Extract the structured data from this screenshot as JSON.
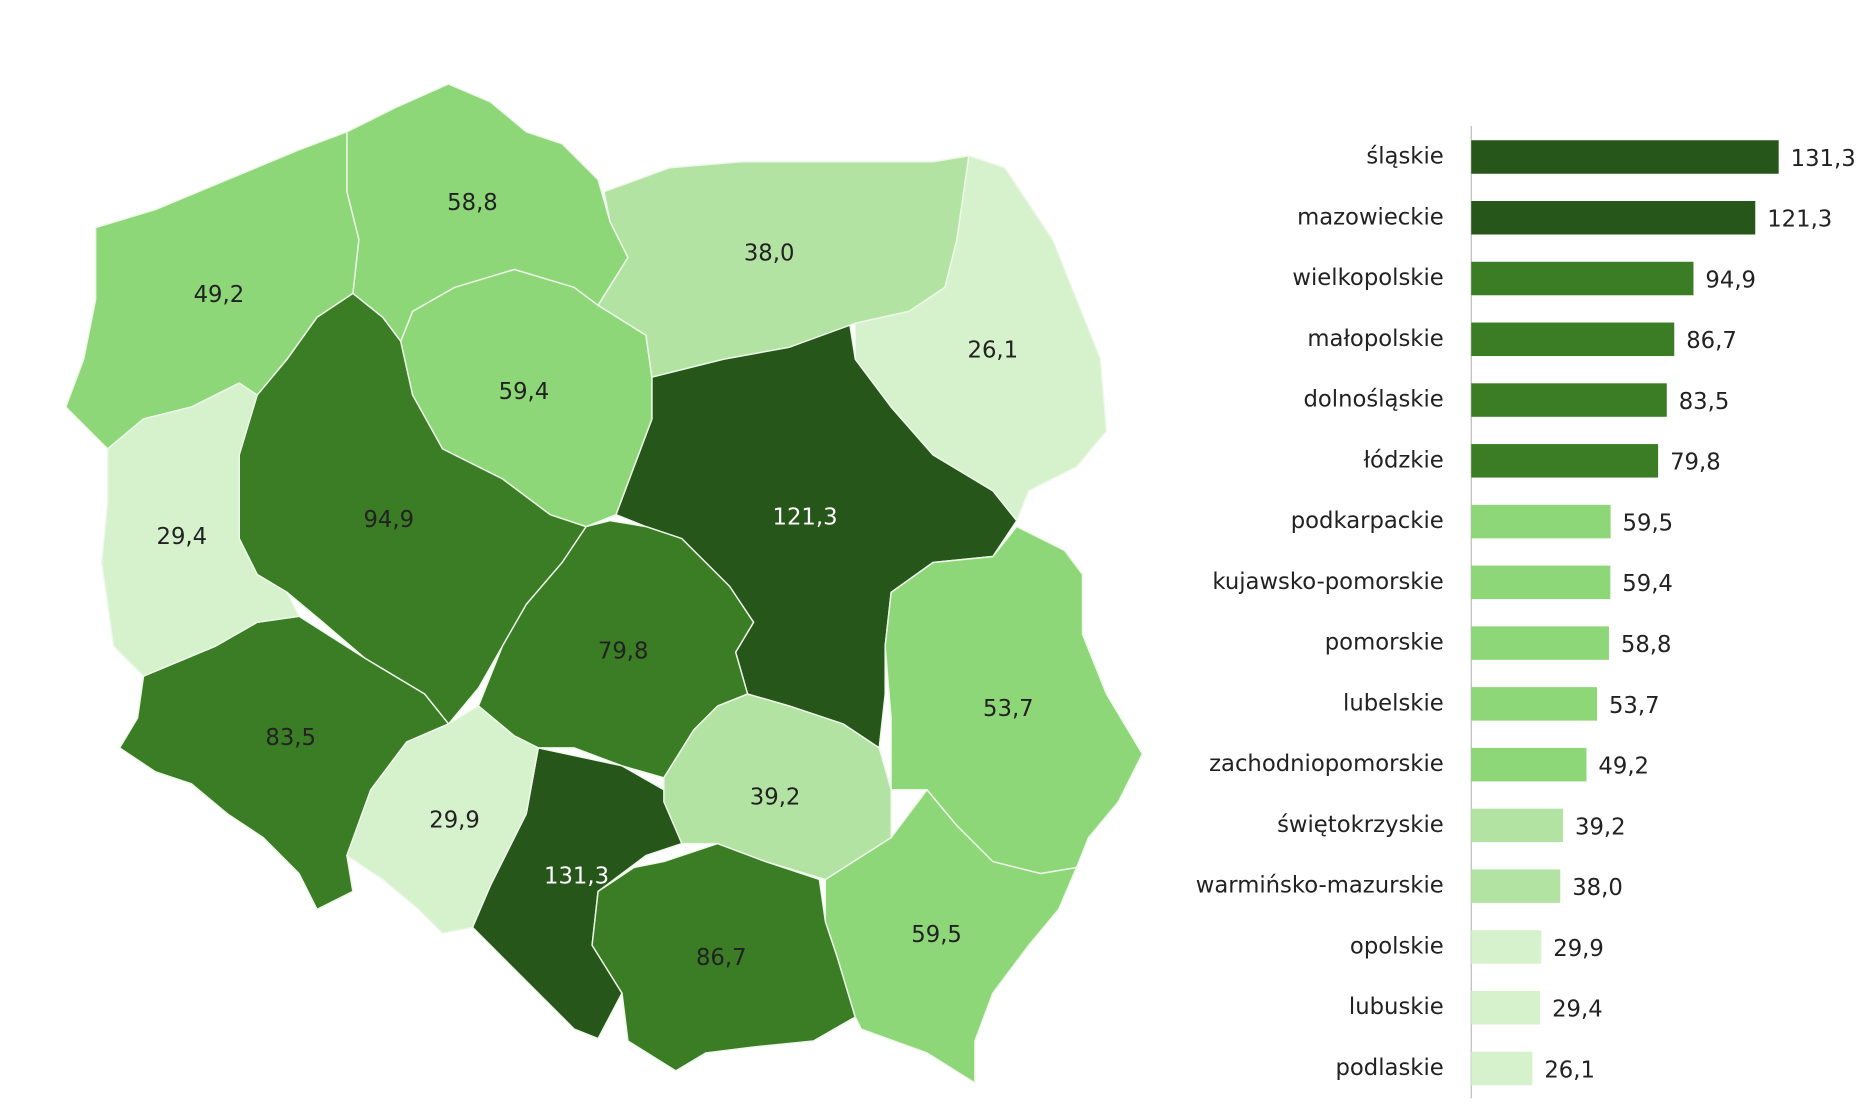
{
  "chart_data": {
    "type": "bar",
    "categories": [
      "śląskie",
      "mazowieckie",
      "wielkopolskie",
      "małopolskie",
      "dolnośląskie",
      "łódzkie",
      "podkarpackie",
      "kujawsko-pomorskie",
      "pomorskie",
      "lubelskie",
      "zachodniopomorskie",
      "świętokrzyskie",
      "warmińsko-mazurskie",
      "opolskie",
      "lubuskie",
      "podlaskie"
    ],
    "values": [
      131.3,
      121.3,
      94.9,
      86.7,
      83.5,
      79.8,
      59.5,
      59.4,
      58.8,
      53.7,
      49.2,
      39.2,
      38.0,
      29.9,
      29.4,
      26.1
    ],
    "value_labels": [
      "131,3",
      "121,3",
      "94,9",
      "86,7",
      "83,5",
      "79,8",
      "59,5",
      "59,4",
      "58,8",
      "53,7",
      "49,2",
      "39,2",
      "38,0",
      "29,9",
      "29,4",
      "26,1"
    ],
    "colors": [
      "#26561a",
      "#26561a",
      "#3a7d24",
      "#3a7d24",
      "#3a7d24",
      "#3a7d24",
      "#8ed778",
      "#8ed778",
      "#8ed778",
      "#8ed778",
      "#8ed778",
      "#b3e3a2",
      "#b3e3a2",
      "#d6f2cc",
      "#d6f2cc",
      "#d6f2cc"
    ]
  }
}
